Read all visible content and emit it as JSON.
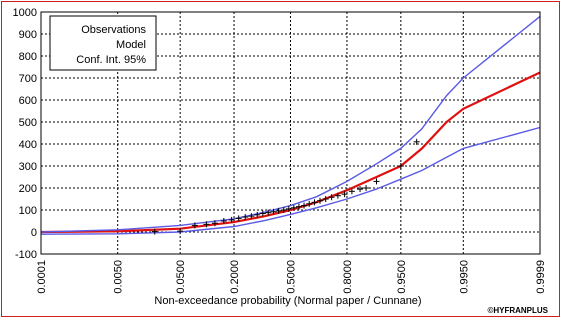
{
  "chart_data": {
    "type": "line",
    "xlabel": "Non-exceedance probability (Normal paper / Cunnane)",
    "x_ticks": [
      "0.0001",
      "0.0050",
      "0.0500",
      "0.2000",
      "0.5000",
      "0.8000",
      "0.9500",
      "0.9950",
      "0.9999"
    ],
    "ylim": [
      -100,
      1000
    ],
    "y_ticks": [
      -100,
      0,
      100,
      200,
      300,
      400,
      500,
      600,
      700,
      800,
      900,
      1000
    ],
    "grid": true,
    "x_scale": "normal-probability",
    "legend": {
      "placement": "top-left",
      "entries": [
        "Observations",
        "Model",
        "Conf. Int. 95%"
      ]
    },
    "credit": "©HYFRANPLUS",
    "series": [
      {
        "role": "model",
        "color": "#e01010",
        "points": [
          [
            0.0001,
            0
          ],
          [
            0.005,
            3
          ],
          [
            0.05,
            15
          ],
          [
            0.2,
            45
          ],
          [
            0.35,
            72
          ],
          [
            0.5,
            100
          ],
          [
            0.65,
            135
          ],
          [
            0.8,
            190
          ],
          [
            0.9,
            250
          ],
          [
            0.95,
            300
          ],
          [
            0.975,
            380
          ],
          [
            0.99,
            500
          ],
          [
            0.995,
            560
          ],
          [
            0.9999,
            725
          ]
        ]
      },
      {
        "role": "upper-ci",
        "color": "#5a5ae6",
        "points": [
          [
            0.0001,
            0
          ],
          [
            0.005,
            10
          ],
          [
            0.05,
            30
          ],
          [
            0.2,
            60
          ],
          [
            0.35,
            90
          ],
          [
            0.5,
            120
          ],
          [
            0.65,
            160
          ],
          [
            0.8,
            230
          ],
          [
            0.9,
            310
          ],
          [
            0.95,
            380
          ],
          [
            0.975,
            470
          ],
          [
            0.99,
            620
          ],
          [
            0.995,
            700
          ],
          [
            0.9999,
            980
          ]
        ]
      },
      {
        "role": "lower-ci",
        "color": "#5a5ae6",
        "points": [
          [
            0.0001,
            -10
          ],
          [
            0.005,
            -8
          ],
          [
            0.05,
            0
          ],
          [
            0.2,
            25
          ],
          [
            0.35,
            52
          ],
          [
            0.5,
            80
          ],
          [
            0.65,
            110
          ],
          [
            0.8,
            150
          ],
          [
            0.9,
            195
          ],
          [
            0.95,
            240
          ],
          [
            0.975,
            280
          ],
          [
            0.99,
            340
          ],
          [
            0.995,
            380
          ],
          [
            0.9999,
            475
          ]
        ]
      }
    ],
    "observations": [
      [
        0.0215,
        2
      ],
      [
        0.05,
        4
      ],
      [
        0.077,
        30
      ],
      [
        0.105,
        35
      ],
      [
        0.13,
        40
      ],
      [
        0.16,
        50
      ],
      [
        0.19,
        55
      ],
      [
        0.22,
        62
      ],
      [
        0.25,
        68
      ],
      [
        0.28,
        72
      ],
      [
        0.31,
        78
      ],
      [
        0.34,
        84
      ],
      [
        0.37,
        88
      ],
      [
        0.4,
        92
      ],
      [
        0.43,
        96
      ],
      [
        0.46,
        100
      ],
      [
        0.49,
        105
      ],
      [
        0.52,
        110
      ],
      [
        0.55,
        115
      ],
      [
        0.58,
        120
      ],
      [
        0.61,
        128
      ],
      [
        0.64,
        135
      ],
      [
        0.67,
        142
      ],
      [
        0.7,
        150
      ],
      [
        0.73,
        158
      ],
      [
        0.76,
        165
      ],
      [
        0.79,
        172
      ],
      [
        0.82,
        185
      ],
      [
        0.85,
        195
      ],
      [
        0.87,
        200
      ],
      [
        0.9,
        230
      ],
      [
        0.95,
        300
      ],
      [
        0.97,
        410
      ]
    ]
  },
  "colors": {
    "frame": "#d21e1e",
    "observation_marker": "#000000",
    "grid": "#000000"
  }
}
